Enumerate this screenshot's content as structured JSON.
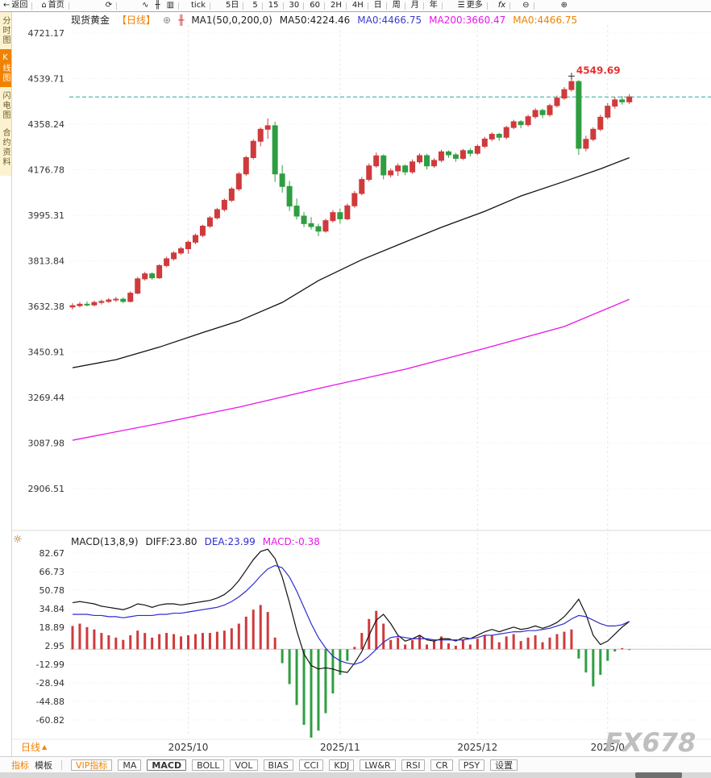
{
  "toolbar": {
    "items": [
      {
        "id": "back",
        "icon": "back-arrow-icon",
        "label": "返回",
        "ml": 4
      },
      {
        "sep": 1
      },
      {
        "id": "home",
        "icon": "home-icon",
        "label": "首页",
        "ml": 6
      },
      {
        "sep": 1
      },
      {
        "id": "refresh",
        "icon": "refresh-icon",
        "ml": 40
      },
      {
        "sep": 1
      },
      {
        "id": "chart-type-line",
        "icon": "line-chart-icon",
        "ml": 26
      },
      {
        "id": "chart-type-candle",
        "icon": "candle-chart-icon",
        "ml": 8
      },
      {
        "id": "chart-type-bar",
        "icon": "bar-chart-icon",
        "ml": 8
      },
      {
        "sep": 1
      },
      {
        "id": "interval-tick",
        "label": "tick",
        "ml": 10
      },
      {
        "sep": 1
      },
      {
        "id": "interval-5d",
        "label": "5日",
        "ml": 14
      },
      {
        "sep": 1
      },
      {
        "id": "interval-5",
        "label": "5",
        "ml": 6
      },
      {
        "sep": 1
      },
      {
        "id": "interval-15",
        "label": "15",
        "ml": 2
      },
      {
        "sep": 1
      },
      {
        "id": "interval-30",
        "label": "30",
        "ml": 2
      },
      {
        "sep": 1
      },
      {
        "id": "interval-60",
        "label": "60",
        "ml": 2
      },
      {
        "sep": 1
      },
      {
        "id": "interval-2h",
        "label": "2H",
        "ml": 2
      },
      {
        "sep": 1
      },
      {
        "id": "interval-4h",
        "label": "4H",
        "ml": 2
      },
      {
        "sep": 1
      },
      {
        "id": "interval-day",
        "label": "日",
        "ml": 2
      },
      {
        "sep": 1
      },
      {
        "id": "interval-week",
        "label": "周",
        "ml": 2
      },
      {
        "sep": 1
      },
      {
        "id": "interval-month",
        "label": "月",
        "ml": 2
      },
      {
        "sep": 1
      },
      {
        "id": "interval-year",
        "label": "年",
        "ml": 2
      },
      {
        "sep": 1
      },
      {
        "id": "more",
        "icon": "menu-icon",
        "label": "更多",
        "ml": 14
      },
      {
        "sep": 1
      },
      {
        "id": "fx-formula",
        "label": "fx",
        "italic": 1,
        "ml": 8
      },
      {
        "sep": 1
      },
      {
        "id": "zoom-out",
        "icon": "zoom-out-icon",
        "ml": 10
      },
      {
        "sep": 1
      },
      {
        "id": "zoom-in",
        "icon": "zoom-in-icon",
        "ml": 28
      }
    ]
  },
  "icons": {
    "back-arrow-icon": "←",
    "home-icon": "⌂",
    "refresh-icon": "⟳",
    "line-chart-icon": "∿",
    "candle-chart-icon": "╫",
    "bar-chart-icon": "▥",
    "menu-icon": "☰",
    "zoom-out-icon": "⊖",
    "zoom-in-icon": "⊕",
    "add-indicator-icon": "⊕",
    "ma-indicator-icon": "╫",
    "settings-sun-icon": "☼",
    "caret-up-icon": "▲"
  },
  "sidebar": {
    "items": [
      {
        "id": "time-chart",
        "label": "分时图",
        "active": false
      },
      {
        "id": "kline-chart",
        "label": "K线图",
        "active": true
      },
      {
        "id": "lightning-chart",
        "label": "闪电图",
        "active": false
      },
      {
        "id": "contract-info",
        "label": "合约资料",
        "active": false
      }
    ]
  },
  "chart_legend": {
    "segments": [
      {
        "id": "symbol-name",
        "text": "现货黄金",
        "color": "#222222"
      },
      {
        "id": "period-tag",
        "text": "【日线】",
        "color": "#f08200"
      },
      {
        "id": "add-indicator",
        "icon": "add-indicator-icon",
        "color": "#8a8a8a"
      },
      {
        "id": "ma-indicator",
        "icon": "ma-indicator-icon",
        "color": "#cf3a3c"
      },
      {
        "id": "ma-params",
        "text": "MA1(50,0,200,0)",
        "color": "#222222"
      },
      {
        "id": "ma50-value",
        "text": "MA50:4224.46",
        "color": "#222222"
      },
      {
        "id": "ma0-value-1",
        "text": "MA0:4466.75",
        "color": "#3b3bd0"
      },
      {
        "id": "ma200-value",
        "text": "MA200:3660.47",
        "color": "#e816e8"
      },
      {
        "id": "ma0-value-2",
        "text": "MA0:4466.75",
        "color": "#f08200"
      }
    ]
  },
  "macd_legend": {
    "segments": [
      {
        "id": "macd-params",
        "text": "MACD(13,8,9)",
        "color": "#222222"
      },
      {
        "id": "diff-value",
        "text": "DIFF:23.80",
        "color": "#222222"
      },
      {
        "id": "dea-value",
        "text": "DEA:23.99",
        "color": "#2d2dcc"
      },
      {
        "id": "macd-value",
        "text": "MACD:-0.38",
        "color": "#e816e8"
      }
    ]
  },
  "bottom_bar": {
    "period_label": "日线",
    "tabs": [
      {
        "id": "indicators",
        "label": "指标",
        "active": true
      },
      {
        "id": "templates",
        "label": "模板",
        "active": false
      }
    ],
    "buttons": [
      {
        "id": "vip",
        "label": "VIP指标",
        "accent": true
      },
      {
        "id": "ma",
        "label": "MA"
      },
      {
        "id": "macd",
        "label": "MACD",
        "selected": true
      },
      {
        "id": "boll",
        "label": "BOLL"
      },
      {
        "id": "vol",
        "label": "VOL"
      },
      {
        "id": "bias",
        "label": "BIAS"
      },
      {
        "id": "cci",
        "label": "CCI"
      },
      {
        "id": "kdj",
        "label": "KDJ"
      },
      {
        "id": "lwr",
        "label": "LW&R"
      },
      {
        "id": "rsi",
        "label": "RSI"
      },
      {
        "id": "cr",
        "label": "CR"
      },
      {
        "id": "psy",
        "label": "PSY"
      },
      {
        "id": "settings",
        "label": "设置"
      }
    ]
  },
  "watermark": "FX678",
  "colors": {
    "accent_orange": "#f08200",
    "up": "#cf3a3c",
    "down": "#2f9e41",
    "ma50": "#111111",
    "ma200": "#e816e8",
    "diff": "#111111",
    "dea": "#2d2dcc",
    "last_price_line": "#2aa79e",
    "annotation_red": "#e83030",
    "grid": "#ebebeb",
    "axis_text": "#333333",
    "watermark": "#b9b9b9"
  },
  "chart_data": {
    "type": "candlestick",
    "title": "现货黄金【日线】",
    "x_ticks": [
      {
        "index": 16,
        "label": "2025/10"
      },
      {
        "index": 37,
        "label": "2025/11"
      },
      {
        "index": 56,
        "label": "2025/12"
      },
      {
        "index": 74,
        "label": "2025/0"
      }
    ],
    "main": {
      "ylabel": "",
      "y_ticks": [
        4721.17,
        4539.71,
        4358.24,
        4176.78,
        3995.31,
        3813.84,
        3632.38,
        3450.91,
        3269.44,
        3087.98,
        2906.51
      ],
      "last_price": 4466.75,
      "peak": {
        "index": 69,
        "price": 4549.69,
        "label": "4549.69"
      },
      "candles": [
        [
          3630,
          3645,
          3620,
          3635
        ],
        [
          3635,
          3650,
          3628,
          3641
        ],
        [
          3641,
          3652,
          3632,
          3638
        ],
        [
          3638,
          3655,
          3633,
          3648
        ],
        [
          3648,
          3660,
          3640,
          3652
        ],
        [
          3652,
          3666,
          3646,
          3658
        ],
        [
          3658,
          3670,
          3650,
          3661
        ],
        [
          3661,
          3668,
          3645,
          3652
        ],
        [
          3652,
          3692,
          3648,
          3685
        ],
        [
          3685,
          3750,
          3680,
          3742
        ],
        [
          3742,
          3770,
          3735,
          3762
        ],
        [
          3762,
          3768,
          3738,
          3746
        ],
        [
          3746,
          3800,
          3742,
          3795
        ],
        [
          3795,
          3830,
          3788,
          3822
        ],
        [
          3822,
          3852,
          3815,
          3845
        ],
        [
          3845,
          3870,
          3838,
          3862
        ],
        [
          3862,
          3895,
          3842,
          3888
        ],
        [
          3888,
          3922,
          3880,
          3915
        ],
        [
          3915,
          3958,
          3908,
          3952
        ],
        [
          3952,
          3992,
          3945,
          3985
        ],
        [
          3985,
          4025,
          3978,
          4018
        ],
        [
          4018,
          4062,
          4010,
          4055
        ],
        [
          4055,
          4108,
          4048,
          4100
        ],
        [
          4100,
          4168,
          4092,
          4160
        ],
        [
          4160,
          4232,
          4152,
          4225
        ],
        [
          4225,
          4298,
          4218,
          4290
        ],
        [
          4290,
          4345,
          4270,
          4338
        ],
        [
          4338,
          4381,
          4300,
          4352
        ],
        [
          4352,
          4368,
          4128,
          4160
        ],
        [
          4160,
          4195,
          4085,
          4110
        ],
        [
          4110,
          4132,
          4012,
          4032
        ],
        [
          4032,
          4062,
          3978,
          3992
        ],
        [
          3992,
          4008,
          3948,
          3962
        ],
        [
          3962,
          3988,
          3938,
          3950
        ],
        [
          3950,
          3962,
          3912,
          3932
        ],
        [
          3932,
          3982,
          3926,
          3974
        ],
        [
          3974,
          4016,
          3966,
          4006
        ],
        [
          4006,
          4022,
          3962,
          3981
        ],
        [
          3981,
          4042,
          3976,
          4033
        ],
        [
          4033,
          4092,
          4025,
          4082
        ],
        [
          4082,
          4148,
          4075,
          4138
        ],
        [
          4138,
          4202,
          4130,
          4192
        ],
        [
          4192,
          4245,
          4185,
          4232
        ],
        [
          4232,
          4238,
          4138,
          4156
        ],
        [
          4156,
          4182,
          4146,
          4172
        ],
        [
          4172,
          4202,
          4152,
          4192
        ],
        [
          4192,
          4198,
          4155,
          4168
        ],
        [
          4168,
          4218,
          4160,
          4208
        ],
        [
          4208,
          4242,
          4200,
          4233
        ],
        [
          4233,
          4240,
          4178,
          4192
        ],
        [
          4192,
          4222,
          4185,
          4214
        ],
        [
          4214,
          4256,
          4206,
          4248
        ],
        [
          4248,
          4254,
          4224,
          4236
        ],
        [
          4236,
          4244,
          4208,
          4222
        ],
        [
          4222,
          4260,
          4215,
          4253
        ],
        [
          4253,
          4262,
          4230,
          4242
        ],
        [
          4242,
          4278,
          4235,
          4270
        ],
        [
          4270,
          4308,
          4262,
          4299
        ],
        [
          4299,
          4326,
          4290,
          4318
        ],
        [
          4318,
          4324,
          4292,
          4306
        ],
        [
          4306,
          4352,
          4298,
          4345
        ],
        [
          4345,
          4376,
          4338,
          4368
        ],
        [
          4368,
          4374,
          4342,
          4356
        ],
        [
          4356,
          4396,
          4348,
          4388
        ],
        [
          4388,
          4422,
          4380,
          4413
        ],
        [
          4413,
          4420,
          4382,
          4396
        ],
        [
          4396,
          4440,
          4388,
          4432
        ],
        [
          4432,
          4472,
          4424,
          4462
        ],
        [
          4462,
          4506,
          4455,
          4496
        ],
        [
          4496,
          4549.69,
          4488,
          4528
        ],
        [
          4528,
          4534,
          4236,
          4262
        ],
        [
          4262,
          4312,
          4250,
          4298
        ],
        [
          4298,
          4346,
          4290,
          4338
        ],
        [
          4338,
          4396,
          4330,
          4386
        ],
        [
          4386,
          4442,
          4378,
          4430
        ],
        [
          4430,
          4466,
          4420,
          4455
        ],
        [
          4455,
          4470,
          4436,
          4447
        ],
        [
          4447,
          4478,
          4438,
          4466.75
        ]
      ],
      "ma50_points": [
        [
          0,
          3388
        ],
        [
          6,
          3420
        ],
        [
          12,
          3470
        ],
        [
          18,
          3528
        ],
        [
          23,
          3574
        ],
        [
          29,
          3648
        ],
        [
          34,
          3735
        ],
        [
          40,
          3818
        ],
        [
          46,
          3889
        ],
        [
          51,
          3947
        ],
        [
          57,
          4011
        ],
        [
          62,
          4072
        ],
        [
          68,
          4130
        ],
        [
          73,
          4180
        ],
        [
          77,
          4224.46
        ]
      ],
      "ma200_points": [
        [
          0,
          3099
        ],
        [
          12,
          3166
        ],
        [
          23,
          3231
        ],
        [
          34,
          3305
        ],
        [
          46,
          3382
        ],
        [
          57,
          3465
        ],
        [
          68,
          3552
        ],
        [
          77,
          3660.47
        ]
      ]
    },
    "macd": {
      "params": "MACD(13,8,9)",
      "y_ticks": [
        82.67,
        66.73,
        50.78,
        34.84,
        18.89,
        2.95,
        -12.99,
        -28.94,
        -44.88,
        -60.82
      ],
      "diff": [
        40,
        41,
        40,
        39,
        37,
        36,
        35,
        34,
        36,
        39,
        38,
        36,
        38,
        39,
        39,
        38,
        39,
        40,
        41,
        42,
        44,
        47,
        52,
        59,
        68,
        77,
        84,
        86,
        78,
        62,
        40,
        16,
        -4,
        -14,
        -17,
        -16,
        -17,
        -19,
        -20,
        -12,
        -2,
        12,
        25,
        30,
        22,
        12,
        7,
        9,
        12,
        8,
        7,
        9,
        9,
        7,
        10,
        9,
        12,
        15,
        17,
        15,
        17,
        19,
        17,
        18,
        20,
        18,
        20,
        23,
        28,
        35,
        43,
        30,
        12,
        4,
        7,
        13,
        19,
        23.8
      ],
      "dea": [
        30,
        30,
        30,
        29,
        29,
        28,
        28,
        27,
        28,
        29,
        29,
        29,
        30,
        30,
        31,
        31,
        32,
        33,
        34,
        35,
        36,
        38,
        41,
        45,
        50,
        56,
        63,
        69,
        72,
        70,
        62,
        50,
        36,
        22,
        10,
        1,
        -6,
        -10,
        -12,
        -13,
        -11,
        -6,
        0,
        6,
        10,
        11,
        10,
        9,
        9,
        9,
        8,
        8,
        8,
        8,
        8,
        9,
        10,
        12,
        12,
        13,
        14,
        15,
        15,
        16,
        16,
        17,
        18,
        20,
        22,
        26,
        29,
        28,
        25,
        22,
        20,
        20,
        21,
        23.99
      ],
      "hist": [
        20,
        22,
        19,
        17,
        14,
        12,
        10,
        8,
        12,
        16,
        14,
        10,
        13,
        14,
        13,
        11,
        12,
        13,
        14,
        14,
        15,
        16,
        18,
        22,
        28,
        34,
        38,
        32,
        10,
        -12,
        -30,
        -48,
        -65,
        -76,
        -70,
        -55,
        -38,
        -22,
        -10,
        2,
        14,
        26,
        33,
        22,
        8,
        10,
        4,
        8,
        12,
        4,
        7,
        11,
        5,
        3,
        8,
        4,
        9,
        12,
        12,
        6,
        11,
        13,
        7,
        10,
        12,
        6,
        10,
        13,
        15,
        17,
        -8,
        -20,
        -32,
        -22,
        -10,
        -2,
        1,
        -0.38
      ]
    }
  }
}
